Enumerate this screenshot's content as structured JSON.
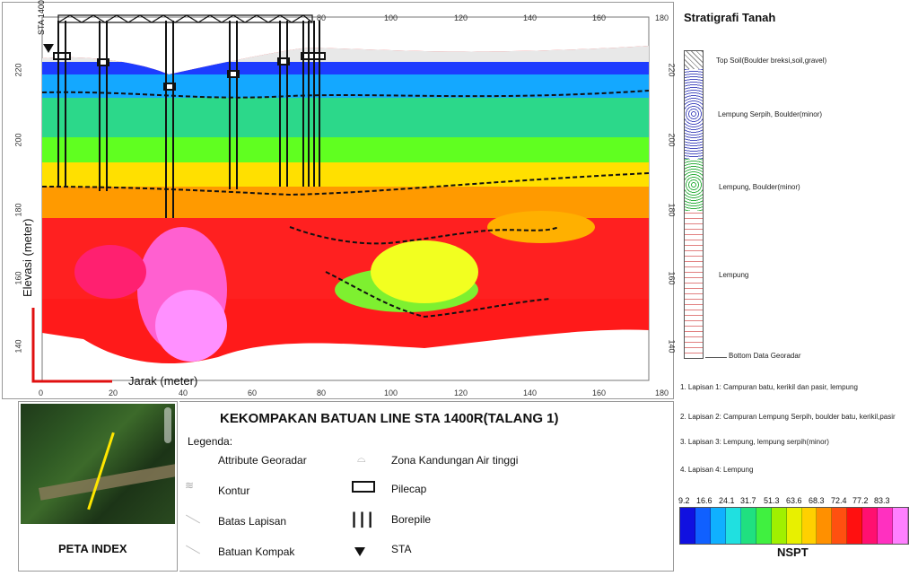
{
  "profile": {
    "x_ticks": [
      "0",
      "20",
      "40",
      "60",
      "80",
      "100",
      "120",
      "140",
      "160",
      "180"
    ],
    "y_ticks": [
      "220",
      "200",
      "180",
      "160",
      "140"
    ],
    "ylabel": "Elevasi (meter)",
    "xlabel": "Jarak (meter)",
    "sta_label": "STA 1400"
  },
  "stratigraphy": {
    "title": "Stratigrafi Tanah",
    "layers": [
      {
        "label": "Top Soil(Boulder breksi,soil,gravel)"
      },
      {
        "label": "Lempung Serpih, Boulder(minor)"
      },
      {
        "label": "Lempung, Boulder(minor)"
      },
      {
        "label": "Lempung"
      },
      {
        "label": "Bottom Data Georadar"
      }
    ],
    "descriptions": [
      "1. Lapisan 1: Campuran batu, kerikil dan pasir, lempung",
      "2. Lapisan 2: Campuran Lempung Serpih, boulder batu, kerikil,pasir",
      "3. Lapisan 3: Lempung, lempung serpih(minor)",
      "4. Lapisan 4: Lempung"
    ]
  },
  "title": "KEKOMPAKAN BATUAN LINE STA 1400R(TALANG 1)",
  "map_index": {
    "label": "PETA INDEX"
  },
  "legend": {
    "heading": "Legenda:",
    "items": [
      {
        "label": "Attribute Georadar",
        "icon": "georadar-icon"
      },
      {
        "label": "Zona Kandungan Air tinggi",
        "icon": "water-zone-icon"
      },
      {
        "label": "Kontur",
        "icon": "contour-icon"
      },
      {
        "label": "Pilecap",
        "icon": "pilecap-icon"
      },
      {
        "label": "Batas Lapisan",
        "icon": "layer-boundary-icon"
      },
      {
        "label": "Borepile",
        "icon": "borepile-icon"
      },
      {
        "label": "Batuan Kompak",
        "icon": "compact-rock-icon"
      },
      {
        "label": "STA",
        "icon": "sta-triangle-icon"
      }
    ]
  },
  "colorbar": {
    "title": "NSPT",
    "ticks": [
      "9.2",
      "16.6",
      "24.1",
      "31.7",
      "51.3",
      "63.6",
      "68.3",
      "72.4",
      "77.2",
      "83.3"
    ],
    "colors": [
      "#1010e0",
      "#1060ff",
      "#10b0ff",
      "#20e0e0",
      "#20e080",
      "#40f040",
      "#a0f000",
      "#e8f000",
      "#ffd000",
      "#ff9000",
      "#ff5010",
      "#ff1010",
      "#ff1070",
      "#ff30c0",
      "#ff80ff"
    ]
  }
}
